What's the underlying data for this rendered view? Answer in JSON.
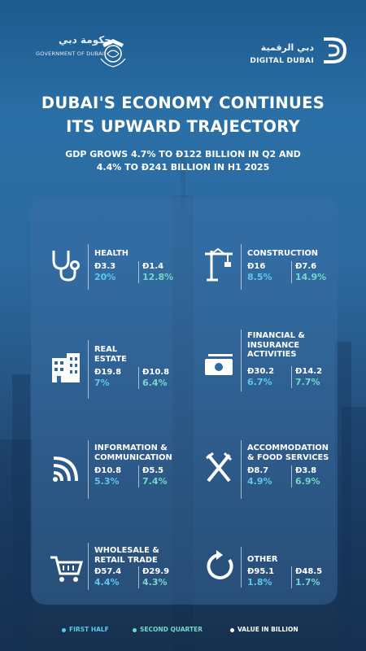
{
  "header": {
    "gov_arabic": "حكومة دبي",
    "gov_english": "GOVERNMENT OF DUBAI",
    "dd_arabic": "دبي الرقمية",
    "dd_english": "DIGITAL DUBAI"
  },
  "title_line1": "DUBAI'S ECONOMY CONTINUES",
  "title_line2": "ITS UPWARD TRAJECTORY",
  "subtitle_line1": "GDP GROWS 4.7% TO Đ122 BILLION IN Q2 AND",
  "subtitle_line2": "4.4% TO Đ241 BILLION IN H1 2025",
  "colors": {
    "first_half": "#5fc6ee",
    "second_quarter": "#76d6c8",
    "value": "#ffffff"
  },
  "sectors": [
    {
      "icon": "stethoscope-icon",
      "name_line1": "HEALTH",
      "name_line2": "",
      "h1_value": "Đ3.3",
      "h1_pct": "20%",
      "q2_value": "Đ1.4",
      "q2_pct": "12.8%"
    },
    {
      "icon": "crane-icon",
      "name_line1": "CONSTRUCTION",
      "name_line2": "",
      "h1_value": "Đ16",
      "h1_pct": "8.5%",
      "q2_value": "Đ7.6",
      "q2_pct": "14.9%"
    },
    {
      "icon": "building-icon",
      "name_line1": "REAL",
      "name_line2": "ESTATE",
      "h1_value": "Đ19.8",
      "h1_pct": "7%",
      "q2_value": "Đ10.8",
      "q2_pct": "6.4%"
    },
    {
      "icon": "money-icon",
      "name_line1": "FINANCIAL &",
      "name_line2": "INSURANCE",
      "name_line3": "ACTIVITIES",
      "h1_value": "Đ30.2",
      "h1_pct": "6.7%",
      "q2_value": "Đ14.2",
      "q2_pct": "7.7%"
    },
    {
      "icon": "wifi-icon",
      "name_line1": "INFORMATION &",
      "name_line2": "COMMUNICATION",
      "h1_value": "Đ10.8",
      "h1_pct": "5.3%",
      "q2_value": "Đ5.5",
      "q2_pct": "7.4%"
    },
    {
      "icon": "fork-knife-icon",
      "name_line1": "ACCOMMODATION",
      "name_line2": "& FOOD SERVICES",
      "h1_value": "Đ8.7",
      "h1_pct": "4.9%",
      "q2_value": "Đ3.8",
      "q2_pct": "6.9%"
    },
    {
      "icon": "cart-icon",
      "name_line1": "WHOLESALE &",
      "name_line2": "RETAIL TRADE",
      "h1_value": "Đ57.4",
      "h1_pct": "4.4%",
      "q2_value": "Đ29.9",
      "q2_pct": "4.3%"
    },
    {
      "icon": "refresh-icon",
      "name_line1": "OTHER",
      "name_line2": "",
      "h1_value": "Đ95.1",
      "h1_pct": "1.8%",
      "q2_value": "Đ48.5",
      "q2_pct": "1.7%"
    }
  ],
  "legend": {
    "first_half": "FIRST HALF",
    "second_quarter": "SECOND QUARTER",
    "value": "VALUE IN BILLION"
  }
}
